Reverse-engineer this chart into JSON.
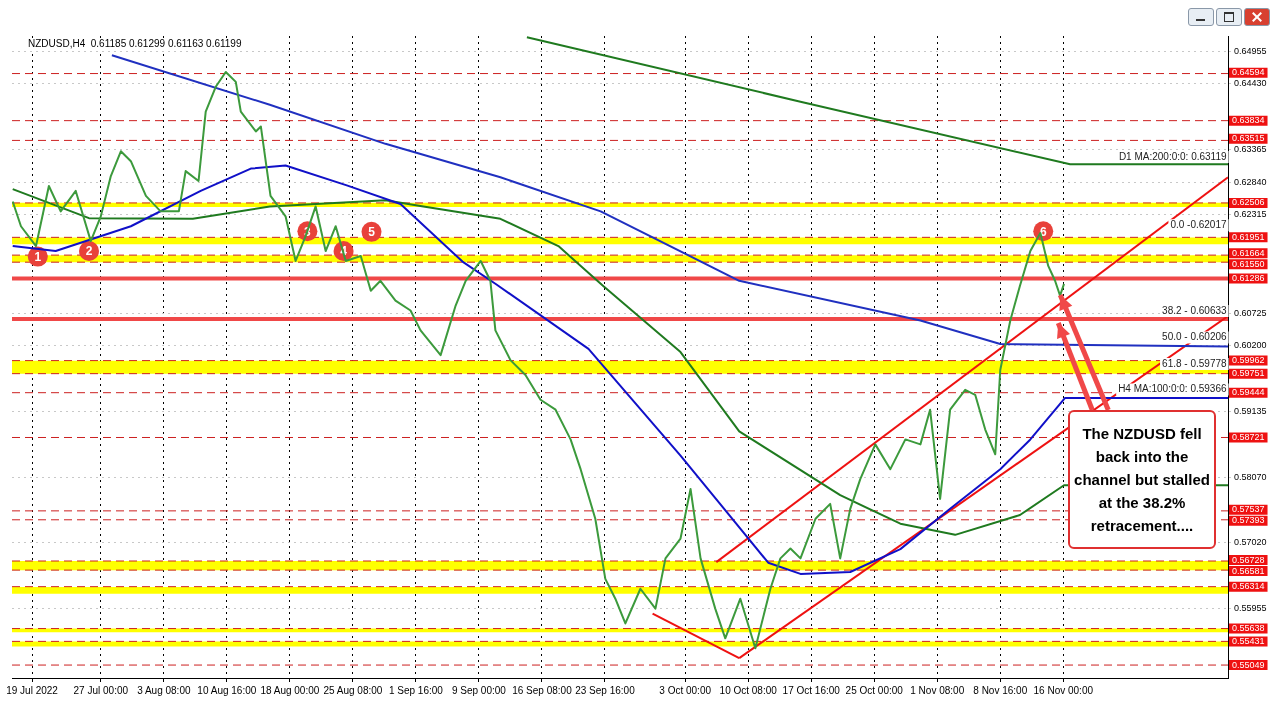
{
  "chart_data": {
    "type": "line",
    "title": "NZDUSD,H4  0.61185 0.61299 0.61163 0.61199",
    "xlim": [
      "2022-07-16T16:00",
      "2022-12-05T04:00"
    ],
    "ylim": [
      0.5484,
      0.652
    ],
    "xticks": [
      {
        "value": "2022-07-19T00:00",
        "label": "19 Jul 2022"
      },
      {
        "value": "2022-07-27T00:00",
        "label": "27 Jul 00:00"
      },
      {
        "value": "2022-08-03T08:00",
        "label": "3 Aug 08:00"
      },
      {
        "value": "2022-08-10T16:00",
        "label": "10 Aug 16:00"
      },
      {
        "value": "2022-08-18T00:00",
        "label": "18 Aug 00:00"
      },
      {
        "value": "2022-08-25T08:00",
        "label": "25 Aug 08:00"
      },
      {
        "value": "2022-09-01T16:00",
        "label": "1 Sep 16:00"
      },
      {
        "value": "2022-09-09T00:00",
        "label": "9 Sep 00:00"
      },
      {
        "value": "2022-09-16T08:00",
        "label": "16 Sep 08:00"
      },
      {
        "value": "2022-09-23T16:00",
        "label": "23 Sep 16:00"
      },
      {
        "value": "2022-10-03T00:00",
        "label": "3 Oct 00:00"
      },
      {
        "value": "2022-10-10T08:00",
        "label": "10 Oct 08:00"
      },
      {
        "value": "2022-10-17T16:00",
        "label": "17 Oct 16:00"
      },
      {
        "value": "2022-10-25T00:00",
        "label": "25 Oct 00:00"
      },
      {
        "value": "2022-11-01T08:00",
        "label": "1 Nov 08:00"
      },
      {
        "value": "2022-11-08T16:00",
        "label": "8 Nov 16:00"
      },
      {
        "value": "2022-11-16T00:00",
        "label": "16 Nov 00:00"
      }
    ],
    "yticks": [
      0.64955,
      {
        "value": 0.6443,
        "label": "0.64430"
      },
      0.63365,
      {
        "value": 0.6284,
        "label": "0.62840"
      },
      0.62315,
      0.60725,
      {
        "value": 0.602,
        "label": "0.60200"
      },
      0.59135,
      {
        "value": 0.5807,
        "label": "0.58070"
      },
      {
        "value": 0.5702,
        "label": "0.57020"
      },
      0.55955
    ],
    "grid": true,
    "legend": false,
    "series": [
      {
        "color": "#3c9a3c",
        "x": [
          "2022-07-16T18:00",
          "2022-07-17T17:00",
          "2022-07-19T11:00",
          "2022-07-20T23:00",
          "2022-07-22T08:00",
          "2022-07-24T02:00",
          "2022-07-25T20:00",
          "2022-07-27T00:00",
          "2022-07-28T04:00",
          "2022-07-29T08:00",
          "2022-07-30T12:00",
          "2022-08-01T06:00",
          "2022-08-02T23:00",
          "2022-08-05T02:00",
          "2022-08-05T21:00",
          "2022-08-07T09:00",
          "2022-08-08T05:00",
          "2022-08-09T09:00",
          "2022-08-10T13:00",
          "2022-08-11T17:00",
          "2022-08-12T07:00",
          "2022-08-14T01:00",
          "2022-08-14T15:00",
          "2022-08-15T18:00",
          "2022-08-17T12:00",
          "2022-08-18T16:00",
          "2022-08-19T20:00",
          "2022-08-21T00:00",
          "2022-08-22T04:00",
          "2022-08-23T08:00",
          "2022-08-24T12:00",
          "2022-08-26T06:00",
          "2022-08-27T10:00",
          "2022-08-28T13:00",
          "2022-08-30T07:00",
          "2022-09-01T01:00",
          "2022-09-02T05:00",
          "2022-09-04T13:00",
          "2022-09-06T07:00",
          "2022-09-07T11:00",
          "2022-09-09T05:00",
          "2022-09-10T08:00",
          "2022-09-10T22:00",
          "2022-09-12T16:00",
          "2022-09-14T10:00",
          "2022-09-16T04:00",
          "2022-09-17T22:00",
          "2022-09-19T16:00",
          "2022-09-20T20:00",
          "2022-09-22T13:00",
          "2022-09-23T17:00",
          "2022-09-24T21:00",
          "2022-09-26T01:00",
          "2022-09-27T19:00",
          "2022-09-29T13:00",
          "2022-09-30T17:00",
          "2022-10-02T11:00",
          "2022-10-03T15:00",
          "2022-10-04T19:00",
          "2022-10-06T12:00",
          "2022-10-07T16:00",
          "2022-10-09T10:00",
          "2022-10-11T04:00",
          "2022-10-12T22:00",
          "2022-10-14T02:00",
          "2022-10-15T06:00",
          "2022-10-16T10:00",
          "2022-10-18T04:00",
          "2022-10-19T21:00",
          "2022-10-21T01:00",
          "2022-10-22T05:00",
          "2022-10-23T09:00",
          "2022-10-25T03:00",
          "2022-10-26T21:00",
          "2022-10-28T15:00",
          "2022-10-30T09:00",
          "2022-10-31T12:00",
          "2022-11-01T16:00",
          "2022-11-02T20:00",
          "2022-11-04T14:00",
          "2022-11-05T18:00",
          "2022-11-06T22:00",
          "2022-11-08T02:00",
          "2022-11-08T16:00",
          "2022-11-09T20:00",
          "2022-11-10T23:00",
          "2022-11-12T04:00",
          "2022-11-13T08:00",
          "2022-11-14T06:00",
          "2022-11-15T01:00",
          "2022-11-15T15:00",
          "2022-11-16T02:00"
        ],
        "values": [
          0.6253,
          0.6213,
          0.6181,
          0.6278,
          0.6237,
          0.627,
          0.6189,
          0.6229,
          0.6294,
          0.6334,
          0.6318,
          0.6262,
          0.6237,
          0.6237,
          0.6302,
          0.6286,
          0.6398,
          0.6438,
          0.6462,
          0.6446,
          0.6398,
          0.6366,
          0.6374,
          0.6262,
          0.6229,
          0.6157,
          0.6197,
          0.6245,
          0.6173,
          0.6213,
          0.6157,
          0.6165,
          0.6109,
          0.6125,
          0.6093,
          0.6077,
          0.6045,
          0.6005,
          0.6085,
          0.6125,
          0.6157,
          0.6125,
          0.6045,
          0.5997,
          0.5973,
          0.5933,
          0.5917,
          0.5869,
          0.5821,
          0.5741,
          0.5644,
          0.5612,
          0.5572,
          0.5628,
          0.5596,
          0.5677,
          0.5709,
          0.5789,
          0.5677,
          0.5596,
          0.5548,
          0.5612,
          0.5532,
          0.5628,
          0.5677,
          0.5693,
          0.5677,
          0.5741,
          0.5765,
          0.5677,
          0.5757,
          0.5805,
          0.5861,
          0.5821,
          0.5869,
          0.5861,
          0.5917,
          0.5773,
          0.5917,
          0.5949,
          0.5941,
          0.5885,
          0.5845,
          0.5981,
          0.6061,
          0.6117,
          0.6173,
          0.6202,
          0.6149,
          0.6125,
          0.6101,
          0.612
        ]
      },
      {
        "color": "#1010c8",
        "x": [
          "2022-07-16T18:00",
          "2022-07-21T18:00",
          "2022-07-30T12:00",
          "2022-08-07T15:00",
          "2022-08-13T11:00",
          "2022-08-17T12:00",
          "2022-08-24T15:00",
          "2022-08-30T21:00",
          "2022-09-07T02:00",
          "2022-09-11T01:00",
          "2022-09-21T18:00",
          "2022-10-02T11:00",
          "2022-10-12T16:00",
          "2022-10-16T10:00",
          "2022-10-22T05:00",
          "2022-10-28T01:00",
          "2022-11-02T20:00",
          "2022-11-08T16:00",
          "2022-11-12T04:00",
          "2022-11-16T05:00",
          "2022-12-05T04:00"
        ],
        "values": [
          0.6181,
          0.6173,
          0.6213,
          0.627,
          0.6306,
          0.6311,
          0.6279,
          0.6249,
          0.6156,
          0.6119,
          0.6015,
          0.5843,
          0.567,
          0.5652,
          0.5655,
          0.5692,
          0.5757,
          0.5821,
          0.5869,
          0.5936,
          0.5936
        ]
      },
      {
        "color": "#1f7a1f",
        "x": [
          "2022-07-16T18:00",
          "2022-07-25T15:00",
          "2022-08-06T17:00",
          "2022-08-15T16:00",
          "2022-08-29T03:00",
          "2022-09-02T13:00",
          "2022-09-11T12:00",
          "2022-09-18T06:00",
          "2022-09-23T12:00",
          "2022-10-02T11:00",
          "2022-10-09T07:00",
          "2022-10-21T01:00",
          "2022-10-28T01:00",
          "2022-11-03T10:00",
          "2022-11-10T23:00",
          "2022-11-16T02:00",
          "2022-12-05T04:00"
        ],
        "values": [
          0.6273,
          0.6226,
          0.6225,
          0.6245,
          0.6255,
          0.6245,
          0.6225,
          0.6181,
          0.6116,
          0.601,
          0.5882,
          0.5779,
          0.5733,
          0.5715,
          0.5747,
          0.5795,
          0.5795
        ]
      },
      {
        "color": "#2030c0",
        "x": [
          "2022-07-28T07:00",
          "2022-08-15T16:00",
          "2022-08-29T03:00",
          "2022-09-11T12:00",
          "2022-09-23T04:00",
          "2022-10-09T07:00",
          "2022-10-30T09:00",
          "2022-11-08T16:00",
          "2022-12-05T04:00"
        ],
        "values": [
          0.6489,
          0.6409,
          0.6346,
          0.6292,
          0.6237,
          0.6125,
          0.6061,
          0.6023,
          0.6019
        ]
      },
      {
        "color": "#1f7a1f",
        "x": [
          "2022-09-14T14:00",
          "2022-10-16T10:00",
          "2022-11-16T19:00",
          "2022-12-05T04:00"
        ],
        "values": [
          0.6518,
          0.6414,
          0.6313,
          0.6313
        ]
      },
      {
        "color": "#ee1111",
        "x": [
          "2022-10-06T15:00",
          "2022-12-05T04:00"
        ],
        "values": [
          0.5671,
          0.6292
        ]
      },
      {
        "color": "#ee1111",
        "x": [
          "2022-10-09T07:00",
          "2022-12-05T04:00"
        ],
        "values": [
          0.5516,
          0.6068
        ]
      },
      {
        "color": "#ee1111",
        "x": [
          "2022-09-29T05:00",
          "2022-10-09T07:00"
        ],
        "values": [
          0.5588,
          0.5516
        ]
      }
    ],
    "bands": [
      {
        "axis": "y",
        "from": 0.6244,
        "to": 0.6251,
        "color": "#ffff00"
      },
      {
        "axis": "y",
        "from": 0.6184,
        "to": 0.6195,
        "color": "#ffff00"
      },
      {
        "axis": "y",
        "from": 0.6155,
        "to": 0.6166,
        "color": "#ffff00"
      },
      {
        "axis": "y",
        "from": 0.5975,
        "to": 0.5996,
        "color": "#ffff00"
      },
      {
        "axis": "y",
        "from": 0.5658,
        "to": 0.5673,
        "color": "#ffff00"
      },
      {
        "axis": "y",
        "from": 0.562,
        "to": 0.5631,
        "color": "#ffff00"
      },
      {
        "axis": "y",
        "from": 0.5558,
        "to": 0.5564,
        "color": "#ffff00"
      },
      {
        "axis": "y",
        "from": 0.5535,
        "to": 0.5543,
        "color": "#ffff00"
      }
    ],
    "ref_lines": [
      {
        "axis": "y",
        "value": 0.64594,
        "label": "0.64594",
        "color": "#cc2020",
        "line_style": "dashed"
      },
      {
        "axis": "y",
        "value": 0.63834,
        "label": "0.63834",
        "color": "#cc2020",
        "line_style": "dashed"
      },
      {
        "axis": "y",
        "value": 0.63515,
        "label": "0.63515",
        "color": "#cc2020",
        "line_style": "dashed"
      },
      {
        "axis": "y",
        "value": 0.62506,
        "label": "0.62506",
        "color": "#cc2020",
        "line_style": "dashed"
      },
      {
        "axis": "y",
        "value": 0.61951,
        "label": "0.61951",
        "color": "#cc2020",
        "line_style": "dashed"
      },
      {
        "axis": "y",
        "value": 0.61664,
        "label": "0.61664",
        "color": "#cc2020",
        "line_style": "dashed"
      },
      {
        "axis": "y",
        "value": 0.6155,
        "label": "0.61550",
        "color": "#cc2020",
        "line_style": "dashed"
      },
      {
        "axis": "y",
        "value": 0.61286,
        "label": "0.61286",
        "color": "#f04848",
        "line_style": "solid"
      },
      {
        "axis": "y",
        "value": 0.60633,
        "color": "#f04848",
        "line_style": "solid"
      },
      {
        "axis": "y",
        "value": 0.59962,
        "label": "0.59962",
        "color": "#cc2020",
        "line_style": "dashed"
      },
      {
        "axis": "y",
        "value": 0.59751,
        "label": "0.59751",
        "color": "#cc2020",
        "line_style": "dashed"
      },
      {
        "axis": "y",
        "value": 0.59444,
        "label": "0.59444",
        "color": "#cc2020",
        "line_style": "dashed"
      },
      {
        "axis": "y",
        "value": 0.58721,
        "label": "0.58721",
        "color": "#cc2020",
        "line_style": "dashed"
      },
      {
        "axis": "y",
        "value": 0.57537,
        "label": "0.57537",
        "color": "#cc2020",
        "line_style": "dashed"
      },
      {
        "axis": "y",
        "value": 0.57393,
        "label": "0.57393",
        "color": "#cc2020",
        "line_style": "dashed"
      },
      {
        "axis": "y",
        "value": 0.56728,
        "label": "0.56728",
        "color": "#cc2020",
        "line_style": "dashed"
      },
      {
        "axis": "y",
        "value": 0.56581,
        "label": "0.56581",
        "color": "#cc2020",
        "line_style": "dashed"
      },
      {
        "axis": "y",
        "value": 0.56314,
        "label": "0.56314",
        "color": "#cc2020",
        "line_style": "dashed"
      },
      {
        "axis": "y",
        "value": 0.55638,
        "label": "0.55638",
        "color": "#cc2020",
        "line_style": "dashed"
      },
      {
        "axis": "y",
        "value": 0.55431,
        "label": "0.55431",
        "color": "#cc2020",
        "line_style": "dashed"
      },
      {
        "axis": "y",
        "value": 0.55049,
        "label": "0.55049",
        "color": "#cc2020",
        "line_style": "dashed"
      }
    ],
    "annotations": [
      {
        "text": "1",
        "x": "2022-07-19T16:00",
        "y": 0.6164
      },
      {
        "text": "2",
        "x": "2022-07-25T15:00",
        "y": 0.6173
      },
      {
        "text": "3",
        "x": "2022-08-20T01:00",
        "y": 0.6205
      },
      {
        "text": "4",
        "x": "2022-08-24T06:00",
        "y": 0.6173
      },
      {
        "text": "5",
        "x": "2022-08-27T12:00",
        "y": 0.6204
      },
      {
        "text": "6",
        "x": "2022-11-13T16:00",
        "y": 0.6205
      },
      {
        "text": "D1 MA:200:0:0: 0.63119",
        "x": "2022-12-05T00:00",
        "y": 0.63119
      },
      {
        "text": "0.0 -0.62017",
        "x": "2022-12-05T00:00",
        "y": 0.62017
      },
      {
        "text": "38.2 - 0.60633",
        "x": "2022-12-05T00:00",
        "y": 0.60633
      },
      {
        "text": "50.0 - 0.60206",
        "x": "2022-12-05T00:00",
        "y": 0.60206
      },
      {
        "text": "61.8 - 0.59778",
        "x": "2022-12-05T00:00",
        "y": 0.59778
      },
      {
        "text": "H4 MA:100:0:0: 0.59366",
        "x": "2022-12-05T00:00",
        "y": 0.59366
      },
      {
        "text": "The NZDUSD fell back into the channel but stalled at the 38.2% retracement....",
        "x": "2022-11-15T10:00",
        "y": 0.60633
      }
    ]
  }
}
